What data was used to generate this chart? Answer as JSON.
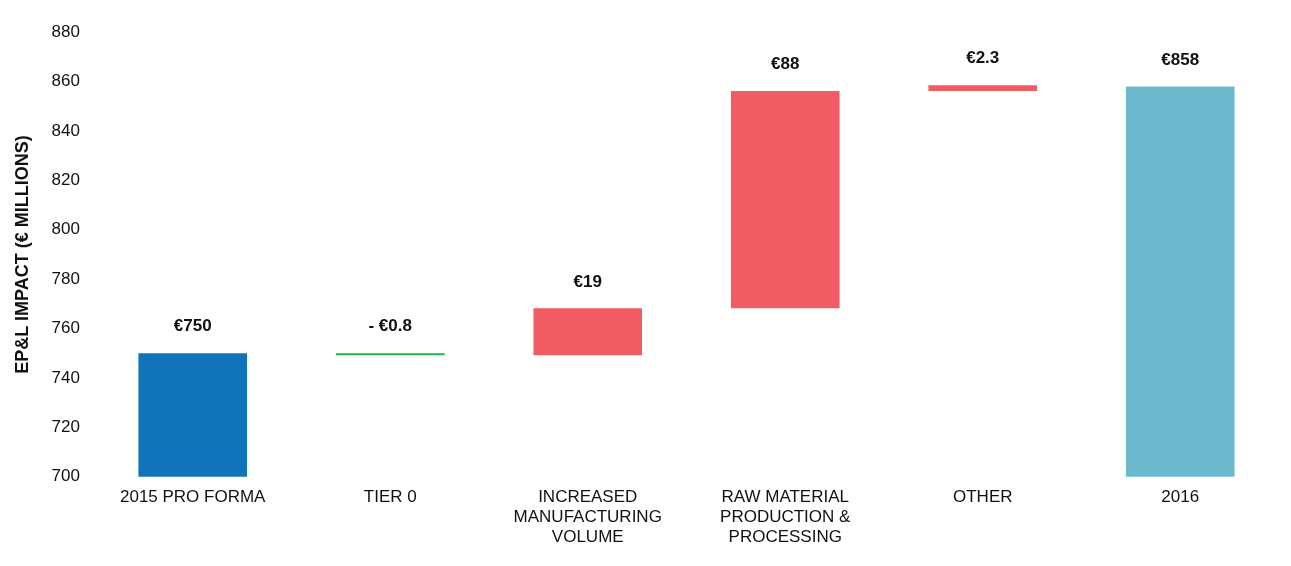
{
  "chart_data": {
    "type": "bar",
    "ylabel": "EP&L IMPACT (€ MILLIONS)",
    "categories": [
      "2015 PRO FORMA",
      "TIER 0",
      "INCREASED MANUFACTURING VOLUME",
      "RAW MATERIAL PRODUCTION & PROCESSING",
      "OTHER",
      "2016"
    ],
    "values": [
      750,
      -0.8,
      19,
      88,
      2.3,
      858
    ],
    "base": [
      null,
      750,
      749.2,
      768.2,
      856.2,
      null
    ],
    "colors": [
      "#1174bb",
      "#22b24c",
      "#f25c64",
      "#f25c64",
      "#f25c64",
      "#6cb8cc"
    ],
    "value_labels": [
      "€750",
      "- €0.8",
      "€19",
      "€88",
      "€2.3",
      "€858"
    ],
    "ylim": [
      700,
      880
    ],
    "yticks": [
      700,
      720,
      740,
      760,
      780,
      800,
      820,
      840,
      860,
      880
    ],
    "grid": false,
    "legend": false
  }
}
